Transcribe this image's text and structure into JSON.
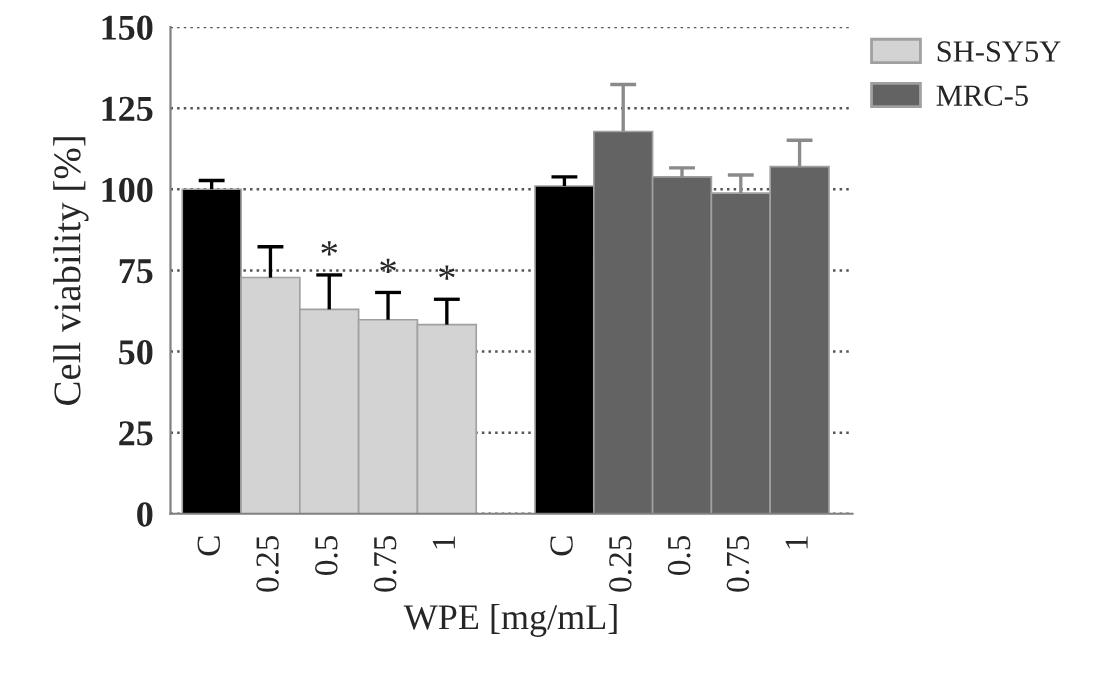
{
  "chart_data": {
    "type": "bar",
    "xlabel": "WPE [mg/mL]",
    "ylabel": "Cell viability [%]",
    "categories": [
      "C",
      "0.25",
      "0.5",
      "0.75",
      "1",
      null,
      "C",
      "0.25",
      "0.5",
      "0.75",
      "1"
    ],
    "series": [
      {
        "name": "SH-SY5Y",
        "color": "#d3d3d3",
        "colors": [
          "#000000",
          "#d3d3d3",
          "#d3d3d3",
          "#d3d3d3",
          "#d3d3d3",
          null,
          null,
          null,
          null,
          null,
          null
        ],
        "values": [
          100,
          72.8,
          63,
          59.8,
          58.3,
          null,
          null,
          null,
          null,
          null,
          null
        ],
        "errors": [
          [
            100,
            102.7
          ],
          [
            72.8,
            82.3
          ],
          [
            63,
            73.6
          ],
          [
            59.8,
            68.2
          ],
          [
            58.3,
            66.1
          ],
          null,
          null,
          null,
          null,
          null,
          null
        ]
      },
      {
        "name": "MRC-5",
        "color": "#636363",
        "colors": [
          null,
          null,
          null,
          null,
          null,
          null,
          "#000000",
          "#636363",
          "#636363",
          "#636363",
          "#636363"
        ],
        "values": [
          null,
          null,
          null,
          null,
          null,
          null,
          101,
          117.8,
          103.8,
          98.8,
          107
        ],
        "errors": [
          null,
          null,
          null,
          null,
          null,
          null,
          [
            101,
            103.8
          ],
          [
            117.8,
            132.3
          ],
          [
            103.8,
            106.6
          ],
          [
            98.8,
            104.4
          ],
          [
            107,
            115.1
          ]
        ]
      }
    ],
    "ylim": [
      0,
      150
    ],
    "yticks": [
      0,
      25,
      50,
      75,
      100,
      125,
      150
    ],
    "grid": "y",
    "legend": "top right",
    "annotations": [
      {
        "text": "*",
        "x": "0.5",
        "y": 73.6
      },
      {
        "text": "*",
        "x": "0.75",
        "y": 68.2
      },
      {
        "text": "*",
        "x": "1",
        "y": 66.1
      }
    ]
  }
}
